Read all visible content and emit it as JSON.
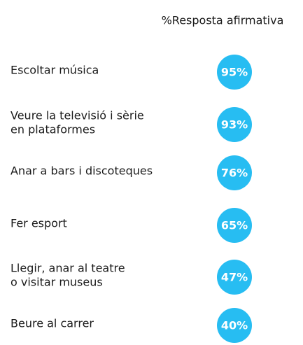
{
  "chart_data": {
    "type": "dot",
    "title": "%Resposta afirmativa",
    "categories": [
      [
        "Escoltar música"
      ],
      [
        "Veure la televisió i sèrie",
        "en plataformes"
      ],
      [
        "Anar a bars i discoteques"
      ],
      [
        "Fer esport"
      ],
      [
        "Llegir, anar al teatre",
        "o visitar museus"
      ],
      [
        "Beure al carrer"
      ]
    ],
    "values": [
      95,
      93,
      76,
      65,
      47,
      40
    ],
    "value_labels": [
      "95%",
      "93%",
      "76%",
      "65%",
      "47%",
      "40%"
    ],
    "color": "#27bdf2"
  }
}
